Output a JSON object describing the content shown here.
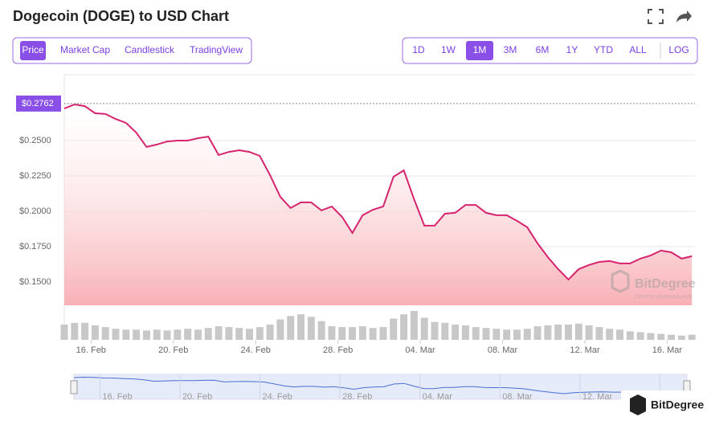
{
  "header": {
    "title": "Dogecoin (DOGE) to USD Chart"
  },
  "tabs": [
    "Price",
    "Market Cap",
    "Candlestick",
    "TradingView"
  ],
  "active_tab": 0,
  "ranges": [
    "1D",
    "1W",
    "1M",
    "3M",
    "6M",
    "1Y",
    "YTD",
    "ALL"
  ],
  "active_range": 2,
  "log_button": "LOG",
  "watermark": {
    "name": "BitDegree",
    "tagline": "CRYPTO LEARNING HUB"
  },
  "footer_logo": "BitDegree",
  "chart_data": {
    "type": "line",
    "series": [
      {
        "name": "Price",
        "color": "#d6246e",
        "values": [
          0.2727,
          0.2756,
          0.2744,
          0.2693,
          0.2688,
          0.2653,
          0.2625,
          0.2557,
          0.2455,
          0.2472,
          0.2494,
          0.25,
          0.25,
          0.2517,
          0.2528,
          0.2398,
          0.242,
          0.2432,
          0.242,
          0.2392,
          0.2256,
          0.2102,
          0.2023,
          0.2063,
          0.2063,
          0.2006,
          0.2034,
          0.196,
          0.1847,
          0.1972,
          0.2011,
          0.2034,
          0.2244,
          0.229,
          0.2085,
          0.1898,
          0.1898,
          0.1983,
          0.1989,
          0.2045,
          0.2045,
          0.1989,
          0.1972,
          0.1972,
          0.1932,
          0.1887,
          0.1773,
          0.1676,
          0.1591,
          0.1517,
          0.1591,
          0.162,
          0.1642,
          0.1648,
          0.1631,
          0.1631,
          0.1665,
          0.1688,
          0.1722,
          0.171,
          0.1665,
          0.1682
        ]
      }
    ],
    "volumes": {
      "color": "#c8c8c8",
      "values": [
        18,
        20,
        20,
        17,
        15,
        13,
        12,
        12,
        11,
        12,
        11,
        12,
        13,
        12,
        14,
        16,
        15,
        14,
        13,
        15,
        18,
        24,
        28,
        30,
        27,
        22,
        16,
        15,
        15,
        16,
        14,
        15,
        25,
        30,
        34,
        26,
        21,
        20,
        18,
        17,
        15,
        14,
        13,
        12,
        12,
        13,
        16,
        17,
        18,
        18,
        19,
        17,
        15,
        13,
        12,
        10,
        9,
        8,
        7,
        6,
        5,
        6
      ]
    },
    "current_price": {
      "value": 0.2762,
      "label": "$0.2762"
    },
    "xlim": [
      0,
      61.3
    ],
    "xticks": [
      {
        "value": 2.6,
        "label": "16. Feb"
      },
      {
        "value": 10.6,
        "label": "20. Feb"
      },
      {
        "value": 18.6,
        "label": "24. Feb"
      },
      {
        "value": 26.6,
        "label": "28. Feb"
      },
      {
        "value": 34.6,
        "label": "04. Mar"
      },
      {
        "value": 42.6,
        "label": "08. Mar"
      },
      {
        "value": 50.6,
        "label": "12. Mar"
      },
      {
        "value": 58.6,
        "label": "16. Mar"
      }
    ],
    "ylim": [
      0.1335,
      0.2966
    ],
    "yticks": [
      {
        "value": 0.15,
        "label": "$0.1500"
      },
      {
        "value": 0.175,
        "label": "$0.1750"
      },
      {
        "value": 0.2,
        "label": "$0.2000"
      },
      {
        "value": 0.225,
        "label": "$0.2250"
      },
      {
        "value": 0.25,
        "label": "$0.2500"
      }
    ],
    "grid": true
  }
}
